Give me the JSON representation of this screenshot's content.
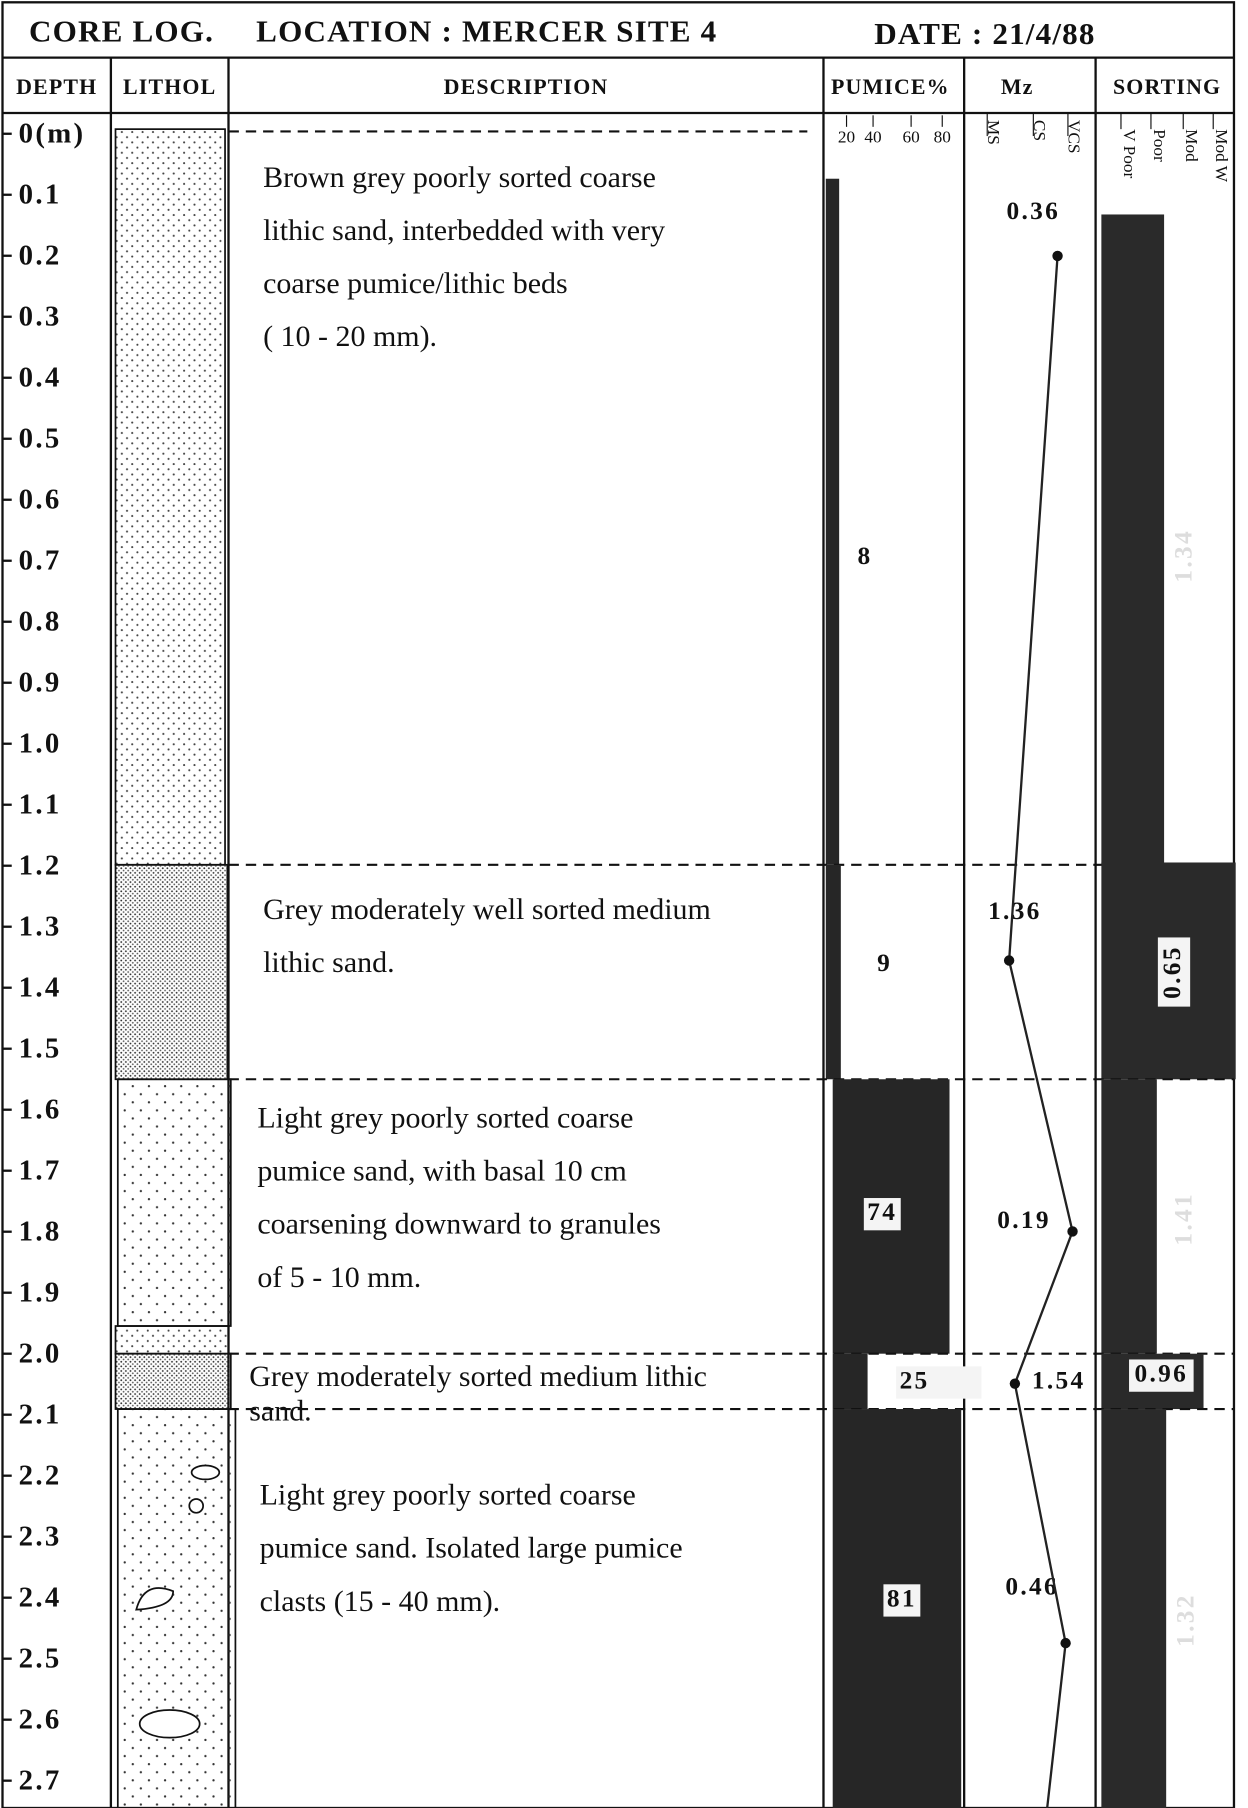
{
  "header": {
    "title": "CORE LOG.",
    "location": "LOCATION :  MERCER SITE 4",
    "date": "DATE :  21/4/88"
  },
  "columns": [
    "DEPTH",
    "LITHOL",
    "DESCRIPTION",
    "PUMICE%",
    "Mz",
    "SORTING"
  ],
  "pumice_scale": [
    "20",
    "40",
    "60",
    "80"
  ],
  "mz_scale": [
    "MS",
    "CS",
    "VCS"
  ],
  "sorting_scale": [
    "V Poor",
    "Poor",
    "Mod",
    "Mod W"
  ],
  "depths": [
    "0(m)",
    "0.1",
    "0.2",
    "0.3",
    "0.4",
    "0.5",
    "0.6",
    "0.7",
    "0.8",
    "0.9",
    "1.0",
    "1.1",
    "1.2",
    "1.3",
    "1.4",
    "1.5",
    "1.6",
    "1.7",
    "1.8",
    "1.9",
    "2.0",
    "2.1",
    "2.2",
    "2.3",
    "2.4",
    "2.5",
    "2.6",
    "2.7"
  ],
  "units": [
    {
      "description": [
        "Brown grey poorly sorted coarse",
        "lithic sand, interbedded with very",
        "coarse pumice/lithic beds",
        "( 10 - 20 mm)."
      ],
      "pumice": 8,
      "mz": 0.36,
      "sorting": 1.34
    },
    {
      "description": [
        "Grey moderately well sorted medium",
        "lithic sand."
      ],
      "pumice": 9,
      "mz": 1.36,
      "sorting": 0.65
    },
    {
      "description": [
        "Light grey poorly sorted coarse",
        "pumice sand, with basal 10 cm",
        "coarsening downward to granules",
        "of 5 - 10 mm."
      ],
      "pumice": 74,
      "mz": 0.19,
      "sorting": 1.41
    },
    {
      "description": [
        "Grey moderately sorted medium lithic",
        "sand."
      ],
      "pumice": 25,
      "mz": 1.54,
      "sorting": 0.96
    },
    {
      "description": [
        "Light grey poorly sorted coarse",
        "pumice sand. Isolated large pumice",
        "clasts (15 - 40 mm)."
      ],
      "pumice": 81,
      "mz": 0.46,
      "sorting": 1.32
    }
  ]
}
